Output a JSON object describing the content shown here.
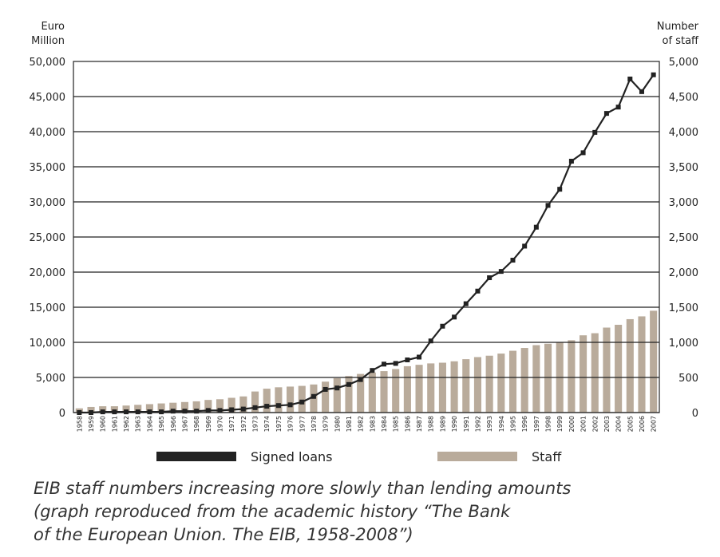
{
  "chart_data": {
    "type": "bar+line",
    "left_axis_title": [
      "Euro",
      "Million"
    ],
    "right_axis_title": [
      "Number",
      "of staff"
    ],
    "left_ylim": [
      0,
      50000
    ],
    "right_ylim": [
      0,
      5000
    ],
    "left_ticks": [
      "50,000",
      "45,000",
      "40,000",
      "35,000",
      "30,000",
      "25,000",
      "20,000",
      "15,000",
      "10,000",
      "5,000",
      "0"
    ],
    "right_ticks": [
      "5,000",
      "4,500",
      "4,000",
      "3,500",
      "3,000",
      "2,500",
      "2,000",
      "1,500",
      "1,000",
      "500",
      "0"
    ],
    "left_tick_values": [
      50000,
      45000,
      40000,
      35000,
      30000,
      25000,
      20000,
      15000,
      10000,
      5000,
      0
    ],
    "grid": true,
    "categories": [
      "1958",
      "1959",
      "1960",
      "1961",
      "1962",
      "1963",
      "1964",
      "1965",
      "1966",
      "1967",
      "1968",
      "1969",
      "1970",
      "1971",
      "1972",
      "1973",
      "1974",
      "1975",
      "1976",
      "1977",
      "1978",
      "1979",
      "1980",
      "1981",
      "1982",
      "1983",
      "1984",
      "1985",
      "1986",
      "1987",
      "1988",
      "1989",
      "1990",
      "1991",
      "1992",
      "1993",
      "1994",
      "1995",
      "1996",
      "1997",
      "1998",
      "1999",
      "2000",
      "2001",
      "2002",
      "2003",
      "2004",
      "2005",
      "2006",
      "2007"
    ],
    "series": [
      {
        "name": "Signed loans",
        "axis": "left",
        "type": "line",
        "color": "#222222",
        "values": [
          0,
          0,
          100,
          100,
          100,
          100,
          100,
          100,
          200,
          200,
          200,
          300,
          300,
          400,
          500,
          700,
          900,
          1000,
          1100,
          1500,
          2300,
          3300,
          3500,
          4000,
          4700,
          6000,
          6900,
          7000,
          7500,
          7900,
          10200,
          12300,
          13600,
          15500,
          17300,
          19200,
          20100,
          21700,
          23700,
          26400,
          29500,
          31800,
          35800,
          37000,
          39900,
          42600,
          43500,
          47500,
          45700,
          48100
        ]
      },
      {
        "name": "Staff",
        "axis": "right",
        "type": "bar",
        "color": "#b9ab9b",
        "values": [
          60,
          80,
          90,
          90,
          100,
          110,
          120,
          130,
          140,
          150,
          160,
          180,
          190,
          210,
          230,
          300,
          340,
          360,
          370,
          380,
          400,
          440,
          490,
          520,
          550,
          570,
          590,
          620,
          660,
          680,
          700,
          710,
          730,
          760,
          790,
          810,
          840,
          880,
          920,
          960,
          980,
          1000,
          1030,
          1100,
          1130,
          1210,
          1250,
          1330,
          1370,
          1450
        ]
      }
    ]
  },
  "legend": {
    "loans_label": "Signed loans",
    "staff_label": "Staff"
  },
  "caption": {
    "line1": "EIB staff numbers increasing more slowly than lending amounts",
    "line2": "(graph reproduced from the academic history “The Bank",
    "line3": "of the European Union. The EIB, 1958-2008”)"
  }
}
